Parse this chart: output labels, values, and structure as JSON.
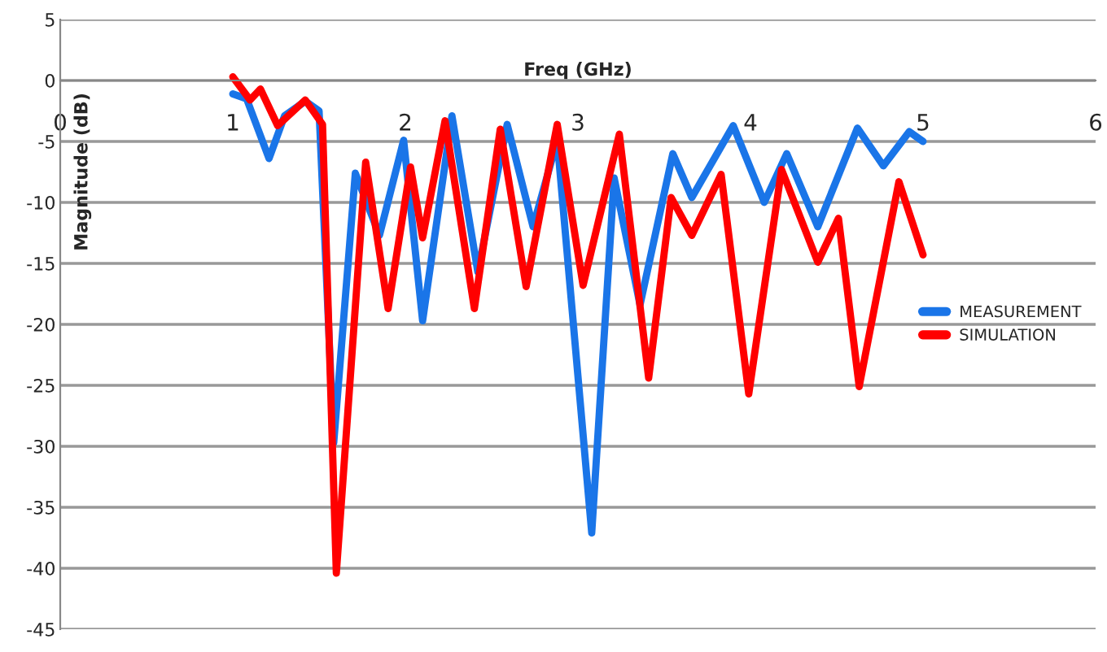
{
  "chart_data": {
    "type": "line",
    "xlabel": "Freq (GHz)",
    "ylabel": "Magnitude (dB)",
    "xlim": [
      0,
      6
    ],
    "xticks": [
      0,
      1,
      2,
      3,
      4,
      5,
      6
    ],
    "ylim": [
      -45,
      5
    ],
    "yticks": [
      -45,
      -40,
      -35,
      -30,
      -25,
      -20,
      -15,
      -10,
      -5,
      0,
      5
    ],
    "grid": "y",
    "legend": "right",
    "line_style": "solid",
    "series": [
      {
        "name": "MEASUREMENT",
        "color": "#1a75e8",
        "x": [
          1.0,
          1.08,
          1.21,
          1.3,
          1.42,
          1.5,
          1.585,
          1.71,
          1.85,
          1.99,
          2.1,
          2.27,
          2.42,
          2.59,
          2.74,
          2.88,
          3.08,
          3.21,
          3.36,
          3.55,
          3.66,
          3.9,
          4.08,
          4.21,
          4.39,
          4.62,
          4.77,
          4.92,
          5.0
        ],
        "values": [
          -1.1,
          -1.5,
          -6.4,
          -2.9,
          -1.7,
          -2.5,
          -29.7,
          -7.6,
          -12.7,
          -4.9,
          -19.7,
          -2.9,
          -15.7,
          -3.6,
          -12,
          -4.9,
          -37.1,
          -8,
          -18.4,
          -6,
          -9.6,
          -3.7,
          -10,
          -6,
          -12,
          -3.9,
          -7,
          -4.2,
          -5
        ]
      },
      {
        "name": "SIMULATION",
        "color": "#ff0000",
        "x": [
          1.0,
          1.1,
          1.16,
          1.26,
          1.42,
          1.52,
          1.6,
          1.77,
          1.9,
          2.03,
          2.1,
          2.23,
          2.4,
          2.55,
          2.7,
          2.88,
          3.03,
          3.24,
          3.41,
          3.54,
          3.66,
          3.83,
          3.99,
          4.18,
          4.39,
          4.51,
          4.63,
          4.86,
          5.0
        ],
        "values": [
          0.3,
          -1.6,
          -0.7,
          -3.7,
          -1.6,
          -3.6,
          -40.4,
          -6.7,
          -18.7,
          -7.1,
          -12.9,
          -3.3,
          -18.7,
          -4,
          -16.9,
          -3.6,
          -16.8,
          -4.4,
          -24.4,
          -9.6,
          -12.7,
          -7.7,
          -25.7,
          -7.3,
          -14.9,
          -11.3,
          -25.1,
          -8.3,
          -14.3
        ]
      }
    ]
  }
}
